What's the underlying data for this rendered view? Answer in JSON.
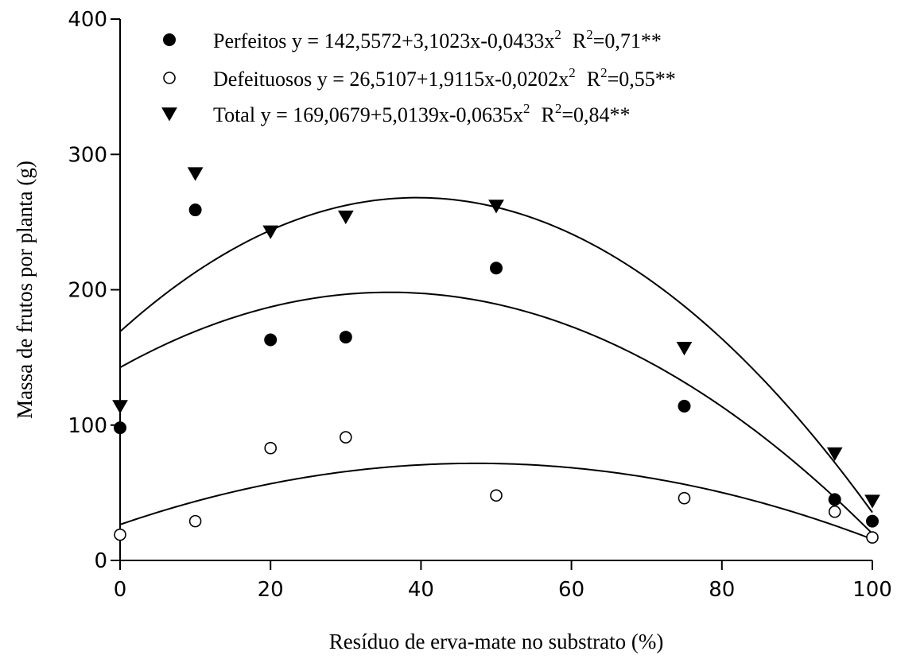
{
  "chart_data": {
    "type": "scatter",
    "xlabel": "Resíduo de erva-mate no substrato (%)",
    "ylabel": "Massa de frutos por planta (g)",
    "xlim": [
      0,
      100
    ],
    "ylim": [
      0,
      400
    ],
    "xticks": [
      0,
      20,
      40,
      60,
      80,
      100
    ],
    "yticks": [
      0,
      100,
      200,
      300,
      400
    ],
    "grid": false,
    "legend_position": "top-center",
    "series": [
      {
        "name": "Perfeitos",
        "marker": "filled-circle",
        "equation": "y = 142,5572+3,1023x-0,0433x",
        "r2": "R",
        "r2_value": "=0,71**",
        "coefficients": [
          142.5572,
          3.1023,
          -0.0433
        ],
        "points": [
          [
            0,
            98
          ],
          [
            10,
            259
          ],
          [
            20,
            163
          ],
          [
            30,
            165
          ],
          [
            50,
            216
          ],
          [
            75,
            114
          ],
          [
            95,
            45
          ],
          [
            100,
            29
          ]
        ]
      },
      {
        "name": "Defeituosos",
        "marker": "open-circle",
        "equation": "y = 26,5107+1,9115x-0,0202x",
        "r2": "R",
        "r2_value": "=0,55**",
        "coefficients": [
          26.5107,
          1.9115,
          -0.0202
        ],
        "points": [
          [
            0,
            19
          ],
          [
            10,
            29
          ],
          [
            20,
            83
          ],
          [
            30,
            91
          ],
          [
            50,
            48
          ],
          [
            75,
            46
          ],
          [
            95,
            36
          ],
          [
            100,
            17
          ]
        ]
      },
      {
        "name": "Total",
        "marker": "filled-triangle-down",
        "equation": "y = 169,0679+5,0139x-0,0635x",
        "r2": "R",
        "r2_value": "=0,84**",
        "coefficients": [
          169.0679,
          5.0139,
          -0.0635
        ],
        "points": [
          [
            0,
            114
          ],
          [
            10,
            286
          ],
          [
            20,
            243
          ],
          [
            30,
            254
          ],
          [
            50,
            262
          ],
          [
            75,
            157
          ],
          [
            95,
            79
          ],
          [
            100,
            44
          ]
        ]
      }
    ],
    "superscript": "2"
  }
}
